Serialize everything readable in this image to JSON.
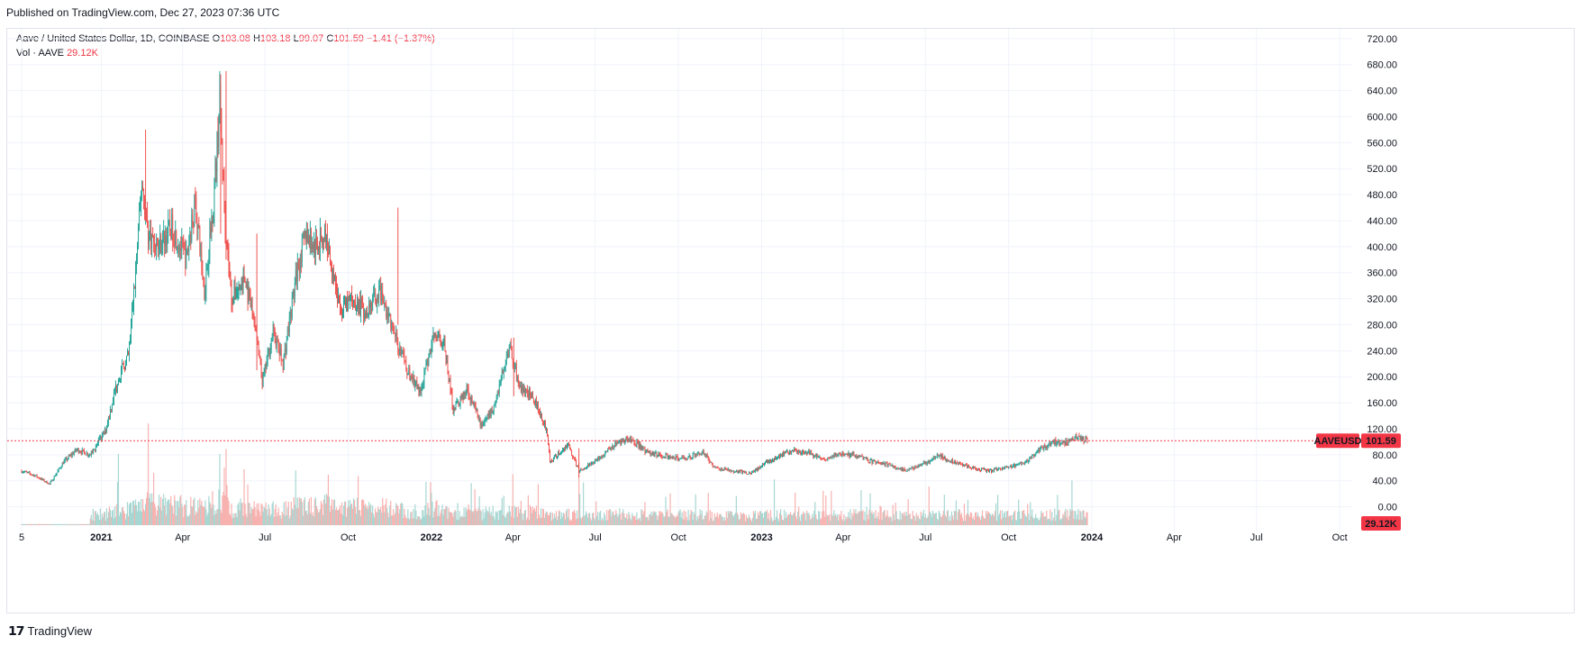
{
  "header": {
    "published": "Published on TradingView.com, Dec 27, 2023 07:36 UTC"
  },
  "legend": {
    "symbol": "Aave / United States Dollar, 1D, COINBASE",
    "o_label": "O",
    "o": "103.08",
    "h_label": "H",
    "h": "103.18",
    "l_label": "L",
    "l": "99.07",
    "c_label": "C",
    "c": "101.59",
    "change": "−1.41 (−1.37%)",
    "vol_label": "Vol · AAVE",
    "vol": "29.12K"
  },
  "footer": {
    "brand": "TradingView"
  },
  "colors": {
    "up": "#26a69a",
    "down": "#ef5350",
    "up_vol": "#a7d7d2",
    "down_vol": "#f7b2b0",
    "badge": "#f23645",
    "grid": "#f0f3fa"
  },
  "chart_data": {
    "type": "candlestick",
    "interval": "1D",
    "symbol_badge": "AAVEUSD",
    "last_price_label": "101.59",
    "last_volume_label": "29.12K",
    "y_ticks": [
      "720.00",
      "680.00",
      "640.00",
      "600.00",
      "560.00",
      "520.00",
      "480.00",
      "440.00",
      "400.00",
      "360.00",
      "320.00",
      "280.00",
      "240.00",
      "200.00",
      "160.00",
      "120.00",
      "80.00",
      "40.00",
      "0.00"
    ],
    "x_ticks": [
      "5",
      "2021",
      "Apr",
      "Jul",
      "Oct",
      "2022",
      "Apr",
      "Jul",
      "Oct",
      "2023",
      "Apr",
      "Jul",
      "Oct",
      "2024",
      "Apr",
      "Jul",
      "Oct"
    ],
    "ylim": [
      -38,
      735
    ],
    "price_path": [
      [
        "2020-10-05",
        55
      ],
      [
        "2020-10-20",
        48
      ],
      [
        "2020-11-05",
        35
      ],
      [
        "2020-11-20",
        68
      ],
      [
        "2020-12-05",
        88
      ],
      [
        "2020-12-20",
        80
      ],
      [
        "2021-01-05",
        115
      ],
      [
        "2021-01-20",
        200
      ],
      [
        "2021-01-31",
        230
      ],
      [
        "2021-02-08",
        360
      ],
      [
        "2021-02-15",
        500
      ],
      [
        "2021-02-22",
        420
      ],
      [
        "2021-03-05",
        400
      ],
      [
        "2021-03-20",
        430
      ],
      [
        "2021-04-05",
        380
      ],
      [
        "2021-04-15",
        470
      ],
      [
        "2021-04-25",
        330
      ],
      [
        "2021-05-05",
        470
      ],
      [
        "2021-05-12",
        620
      ],
      [
        "2021-05-18",
        440
      ],
      [
        "2021-05-25",
        320
      ],
      [
        "2021-06-08",
        350
      ],
      [
        "2021-06-20",
        280
      ],
      [
        "2021-06-28",
        190
      ],
      [
        "2021-07-10",
        270
      ],
      [
        "2021-07-21",
        220
      ],
      [
        "2021-08-05",
        360
      ],
      [
        "2021-08-15",
        420
      ],
      [
        "2021-08-25",
        400
      ],
      [
        "2021-09-05",
        420
      ],
      [
        "2021-09-15",
        360
      ],
      [
        "2021-09-22",
        300
      ],
      [
        "2021-10-05",
        320
      ],
      [
        "2021-10-20",
        300
      ],
      [
        "2021-11-05",
        330
      ],
      [
        "2021-11-20",
        270
      ],
      [
        "2021-12-05",
        210
      ],
      [
        "2021-12-20",
        175
      ],
      [
        "2022-01-05",
        275
      ],
      [
        "2022-01-15",
        250
      ],
      [
        "2022-01-25",
        150
      ],
      [
        "2022-02-10",
        180
      ],
      [
        "2022-02-25",
        125
      ],
      [
        "2022-03-10",
        150
      ],
      [
        "2022-03-28",
        245
      ],
      [
        "2022-04-10",
        180
      ],
      [
        "2022-04-25",
        165
      ],
      [
        "2022-05-08",
        120
      ],
      [
        "2022-05-12",
        70
      ],
      [
        "2022-06-01",
        95
      ],
      [
        "2022-06-13",
        55
      ],
      [
        "2022-06-25",
        65
      ],
      [
        "2022-07-10",
        80
      ],
      [
        "2022-07-25",
        100
      ],
      [
        "2022-08-10",
        105
      ],
      [
        "2022-08-25",
        85
      ],
      [
        "2022-09-10",
        80
      ],
      [
        "2022-09-25",
        75
      ],
      [
        "2022-10-10",
        75
      ],
      [
        "2022-10-28",
        85
      ],
      [
        "2022-11-10",
        60
      ],
      [
        "2022-11-30",
        55
      ],
      [
        "2022-12-20",
        52
      ],
      [
        "2023-01-15",
        75
      ],
      [
        "2023-02-05",
        88
      ],
      [
        "2023-02-20",
        84
      ],
      [
        "2023-03-10",
        72
      ],
      [
        "2023-03-25",
        80
      ],
      [
        "2023-04-15",
        80
      ],
      [
        "2023-05-01",
        70
      ],
      [
        "2023-05-20",
        65
      ],
      [
        "2023-06-10",
        55
      ],
      [
        "2023-06-25",
        65
      ],
      [
        "2023-07-05",
        70
      ],
      [
        "2023-07-15",
        78
      ],
      [
        "2023-08-01",
        70
      ],
      [
        "2023-08-20",
        60
      ],
      [
        "2023-09-10",
        55
      ],
      [
        "2023-09-30",
        60
      ],
      [
        "2023-10-20",
        68
      ],
      [
        "2023-11-05",
        90
      ],
      [
        "2023-11-20",
        100
      ],
      [
        "2023-12-05",
        98
      ],
      [
        "2023-12-15",
        108
      ],
      [
        "2023-12-27",
        101.59
      ]
    ],
    "spikes": [
      [
        "2021-11-25",
        460,
        280
      ],
      [
        "2021-06-22",
        420,
        210
      ],
      [
        "2021-05-19",
        670,
        380
      ],
      [
        "2021-05-13",
        665,
        420
      ],
      [
        "2021-02-19",
        580,
        440
      ],
      [
        "2022-04-02",
        260,
        170
      ],
      [
        "2022-06-13",
        90,
        45
      ]
    ],
    "volume_spikes": [
      [
        "2021-01-20",
        0.7
      ],
      [
        "2021-02-22",
        1.0
      ],
      [
        "2021-05-12",
        0.7
      ],
      [
        "2021-05-19",
        0.75
      ],
      [
        "2021-06-08",
        0.55
      ],
      [
        "2022-04-01",
        0.5
      ],
      [
        "2022-06-13",
        0.62
      ],
      [
        "2022-06-18",
        0.42
      ],
      [
        "2023-01-15",
        0.45
      ],
      [
        "2023-07-05",
        0.38
      ],
      [
        "2023-12-10",
        0.44
      ]
    ]
  }
}
